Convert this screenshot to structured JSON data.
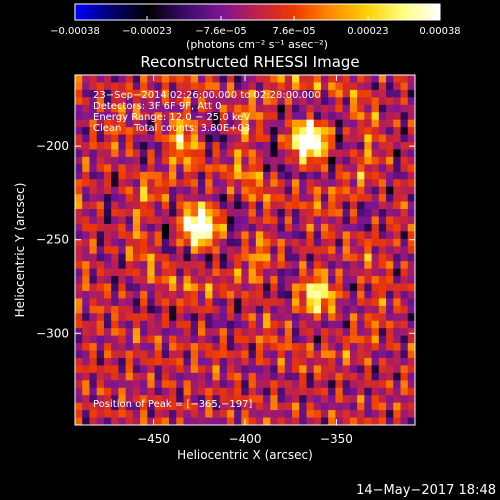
{
  "chart_data": {
    "type": "heatmap",
    "title": "Reconstructed RHESSI Image",
    "xlabel": "Heliocentric X (arcsec)",
    "ylabel": "Heliocentric Y (arcsec)",
    "xlim": [
      -493,
      -307
    ],
    "ylim": [
      -349,
      -162
    ],
    "x_ticks": [
      -450,
      -400,
      -350
    ],
    "x_tick_labels": [
      "−450",
      "−400",
      "−350"
    ],
    "y_ticks": [
      -200,
      -250,
      -300
    ],
    "y_tick_labels": [
      "−200",
      "−250",
      "−300"
    ],
    "colorbar": {
      "range": [
        -0.00038,
        0.00038
      ],
      "tick_values": [
        -0.00038,
        -0.00023,
        -7.6e-05,
        7.6e-05,
        0.00023,
        0.00038
      ],
      "tick_labels": [
        "−0.00038",
        "−0.00023",
        "−7.6e−05",
        "7.6e−05",
        "0.00023",
        "0.00038"
      ],
      "unit_label": "(photons cm⁻² s⁻¹ asec⁻²)",
      "colormap": [
        "#0000ff",
        "#000070",
        "#000000",
        "#3a0a68",
        "#7a1595",
        "#c0204a",
        "#ee3a00",
        "#ff8a00",
        "#ffd000",
        "#ffff80",
        "#ffffff"
      ]
    },
    "annotations": [
      "23−Sep−2014 02:26:00.000 to 02:28:00.000",
      "Detectors: 3F 6F 9F, Att 0",
      "Energy Range: 12.0 − 25.0 keV",
      "Clean    Total counts: 3.80E+03"
    ],
    "peak_label": "Position of Peak = [−365,−197]",
    "grid": false,
    "sources": [
      {
        "x": -425,
        "y": -243,
        "peak": 0.00038
      },
      {
        "x": -365,
        "y": -197,
        "peak": 0.00038
      },
      {
        "x": -360,
        "y": -280,
        "peak": 0.00023
      },
      {
        "x": -435,
        "y": -195,
        "peak": 0.00018
      }
    ]
  },
  "footer": {
    "timestamp": "14−May−2017 18:48"
  }
}
